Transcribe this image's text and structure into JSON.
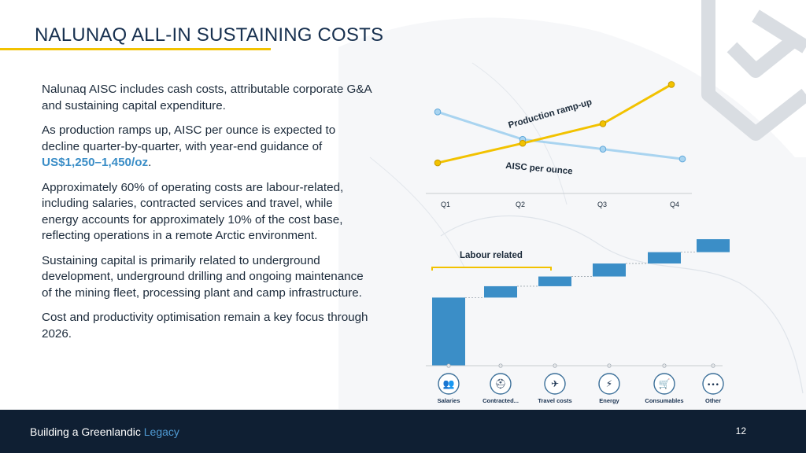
{
  "slide": {
    "title": "NALUNAQ ALL-IN SUSTAINING COSTS",
    "paragraphs": {
      "p1": "Nalunaq AISC includes cash costs, attributable corporate G&A and sustaining capital expenditure.",
      "p2_text": "As production ramps up, AISC per ounce is expected to decline quarter-by-quarter, with year-end guidance of ",
      "p2_highlight": "US$1,250–1,450/oz",
      "p2_end": ".",
      "p3": "Approximately 60% of operating costs are labour-related, including salaries, contracted services and travel, while energy accounts for approximately 10% of the cost base, reflecting operations in a remote Arctic environment.",
      "p4": "Sustaining capital is primarily related to underground development, underground drilling and ongoing maintenance of the mining fleet, processing plant and camp infrastructure.",
      "p5": "Cost and productivity optimisation remain a key focus through 2026."
    },
    "colors": {
      "navy": "#17304f",
      "gold": "#f2c200",
      "blue": "#3b8ec7",
      "light_blue": "#a9d4f0",
      "footer": "#0f1f33"
    }
  },
  "footer": {
    "text": "Building a Greenlandic ",
    "accent": "Legacy",
    "page_number": "12"
  },
  "chart_data": [
    {
      "type": "line",
      "categories": [
        "Q1",
        "Q2",
        "Q3",
        "Q4"
      ],
      "series": [
        {
          "name": "Production ramp-up",
          "values": [
            1,
            2,
            3,
            5
          ],
          "color": "#f2c200"
        },
        {
          "name": "AISC per ounce",
          "values": [
            3.6,
            2.2,
            1.7,
            1.2
          ],
          "color": "#a9d4f0"
        }
      ],
      "ylim": [
        0,
        5.5
      ]
    },
    {
      "type": "bar",
      "subtype": "waterfall",
      "annotation": "Labour related",
      "categories": [
        "Salaries",
        "Contracted...",
        "Travel costs",
        "Energy",
        "Consumables",
        "Other"
      ],
      "icons": [
        "people-icon",
        "worker-icon",
        "airplane-icon",
        "lightning-icon",
        "cart-icon",
        "dots-icon"
      ],
      "values": [
        42,
        7,
        6,
        8,
        7,
        8
      ],
      "ylim": [
        0,
        80
      ]
    }
  ]
}
